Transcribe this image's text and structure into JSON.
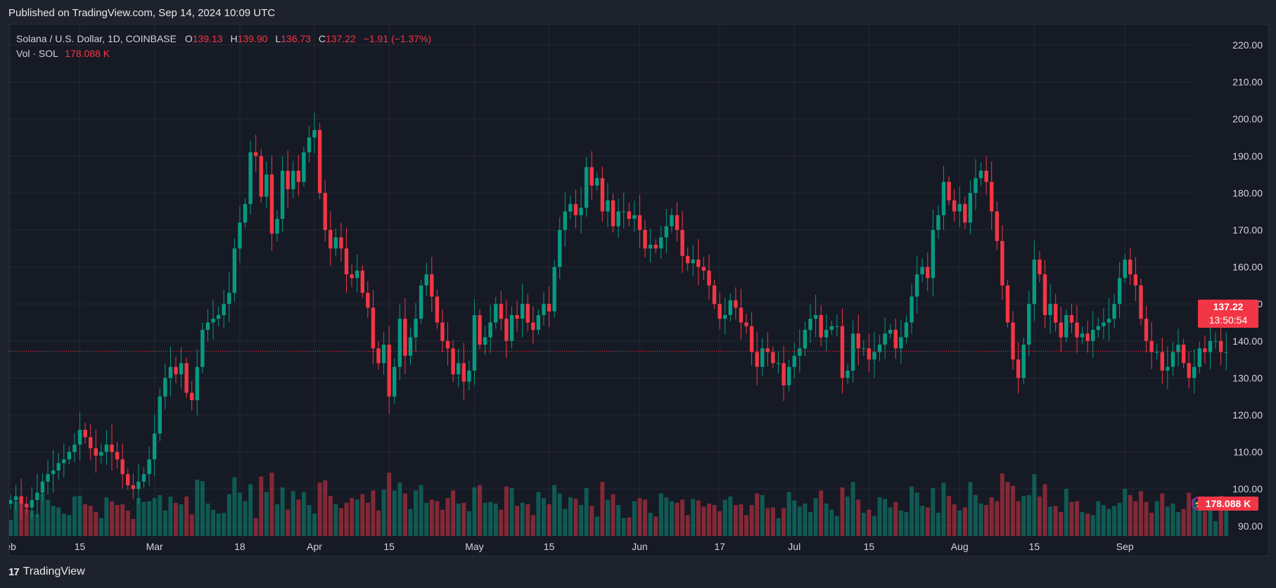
{
  "header": {
    "published": "Published on TradingView.com, Sep 14, 2024 10:09 UTC"
  },
  "legend": {
    "symbol": "Solana / U.S. Dollar, 1D, COINBASE",
    "o_label": "O",
    "o_value": "139.13",
    "h_label": "H",
    "h_value": "139.90",
    "l_label": "L",
    "l_value": "136.73",
    "c_label": "C",
    "c_value": "137.22",
    "change": "−1.91 (−1.37%)",
    "vol_label": "Vol · SOL",
    "vol_value": "178.088 K"
  },
  "price_tag": {
    "price": "137.22",
    "countdown": "13:50:54"
  },
  "volume_tag": "178.088 K",
  "footer": {
    "brand": "TradingView"
  },
  "colors": {
    "up": "#089981",
    "down": "#f23645",
    "background": "#161a25",
    "grid": "#2a2e39"
  },
  "chart_data": {
    "type": "candlestick",
    "title": "Solana / U.S. Dollar, 1D, COINBASE",
    "y_ticks": [
      90,
      100,
      110,
      120,
      130,
      140,
      150,
      160,
      170,
      180,
      190,
      200,
      210,
      220
    ],
    "y_tick_labels": [
      "90.00",
      "100.00",
      "110.00",
      "120.00",
      "130.00",
      "140.00",
      "150.00",
      "160.00",
      "170.00",
      "180.00",
      "190.00",
      "200.00",
      "210.00",
      "220.00"
    ],
    "ylim": [
      81.6,
      225.5
    ],
    "x_labels": [
      {
        "label": "eb",
        "index": 0
      },
      {
        "label": "15",
        "index": 13
      },
      {
        "label": "Mar",
        "index": 27
      },
      {
        "label": "18",
        "index": 43
      },
      {
        "label": "Apr",
        "index": 57
      },
      {
        "label": "15",
        "index": 71
      },
      {
        "label": "May",
        "index": 87
      },
      {
        "label": "15",
        "index": 101
      },
      {
        "label": "Jun",
        "index": 118
      },
      {
        "label": "17",
        "index": 133
      },
      {
        "label": "Jul",
        "index": 147
      },
      {
        "label": "15",
        "index": 161
      },
      {
        "label": "Aug",
        "index": 178
      },
      {
        "label": "15",
        "index": 192
      },
      {
        "label": "Sep",
        "index": 209
      }
    ],
    "last_price": 137.22,
    "close": [
      97,
      98,
      96,
      95,
      97,
      99,
      102,
      104,
      105,
      107,
      108,
      110,
      112,
      116,
      114,
      111,
      109,
      110,
      112,
      110,
      108,
      104,
      101,
      100,
      102,
      104,
      108,
      115,
      125,
      130,
      133,
      131,
      134,
      126,
      124,
      133,
      143,
      145,
      146,
      147,
      150,
      153,
      165,
      172,
      177,
      191,
      190,
      179,
      185,
      169,
      173,
      186,
      181,
      186,
      183,
      191,
      195,
      197,
      180,
      170,
      165,
      168,
      165,
      158,
      157,
      159,
      153,
      149,
      138,
      134,
      139,
      125,
      133,
      146,
      136,
      141,
      146,
      155,
      158,
      152,
      145,
      140,
      138,
      131,
      134,
      129,
      132,
      147,
      139,
      141,
      145,
      150,
      146,
      140,
      147,
      146,
      150,
      145,
      143,
      147,
      150,
      148,
      160,
      170,
      175,
      177,
      174,
      176,
      187,
      182,
      184,
      175,
      178,
      171,
      175,
      175,
      173,
      174,
      170,
      165,
      166,
      165,
      168,
      171,
      174,
      170,
      163,
      161,
      162,
      160,
      159,
      155,
      150,
      146,
      147,
      151,
      149,
      145,
      144,
      137,
      133,
      138,
      137,
      134,
      134,
      128,
      133,
      136,
      138,
      143,
      146,
      147,
      141,
      143,
      144,
      144,
      130,
      132,
      142,
      138,
      138,
      135,
      137,
      139,
      142,
      143,
      138,
      141,
      145,
      152,
      158,
      160,
      157,
      170,
      174,
      183,
      178,
      175,
      177,
      172,
      180,
      184,
      186,
      183,
      175,
      167,
      155,
      145,
      135,
      130,
      139,
      150,
      162,
      158,
      147,
      150,
      145,
      141,
      147,
      145,
      141,
      142,
      140,
      143,
      144,
      145,
      146,
      150,
      157,
      162,
      158,
      155,
      146,
      140,
      137,
      137,
      132,
      133,
      137,
      139,
      134,
      130,
      133,
      138,
      137,
      140,
      140,
      137,
      137
    ]
  }
}
